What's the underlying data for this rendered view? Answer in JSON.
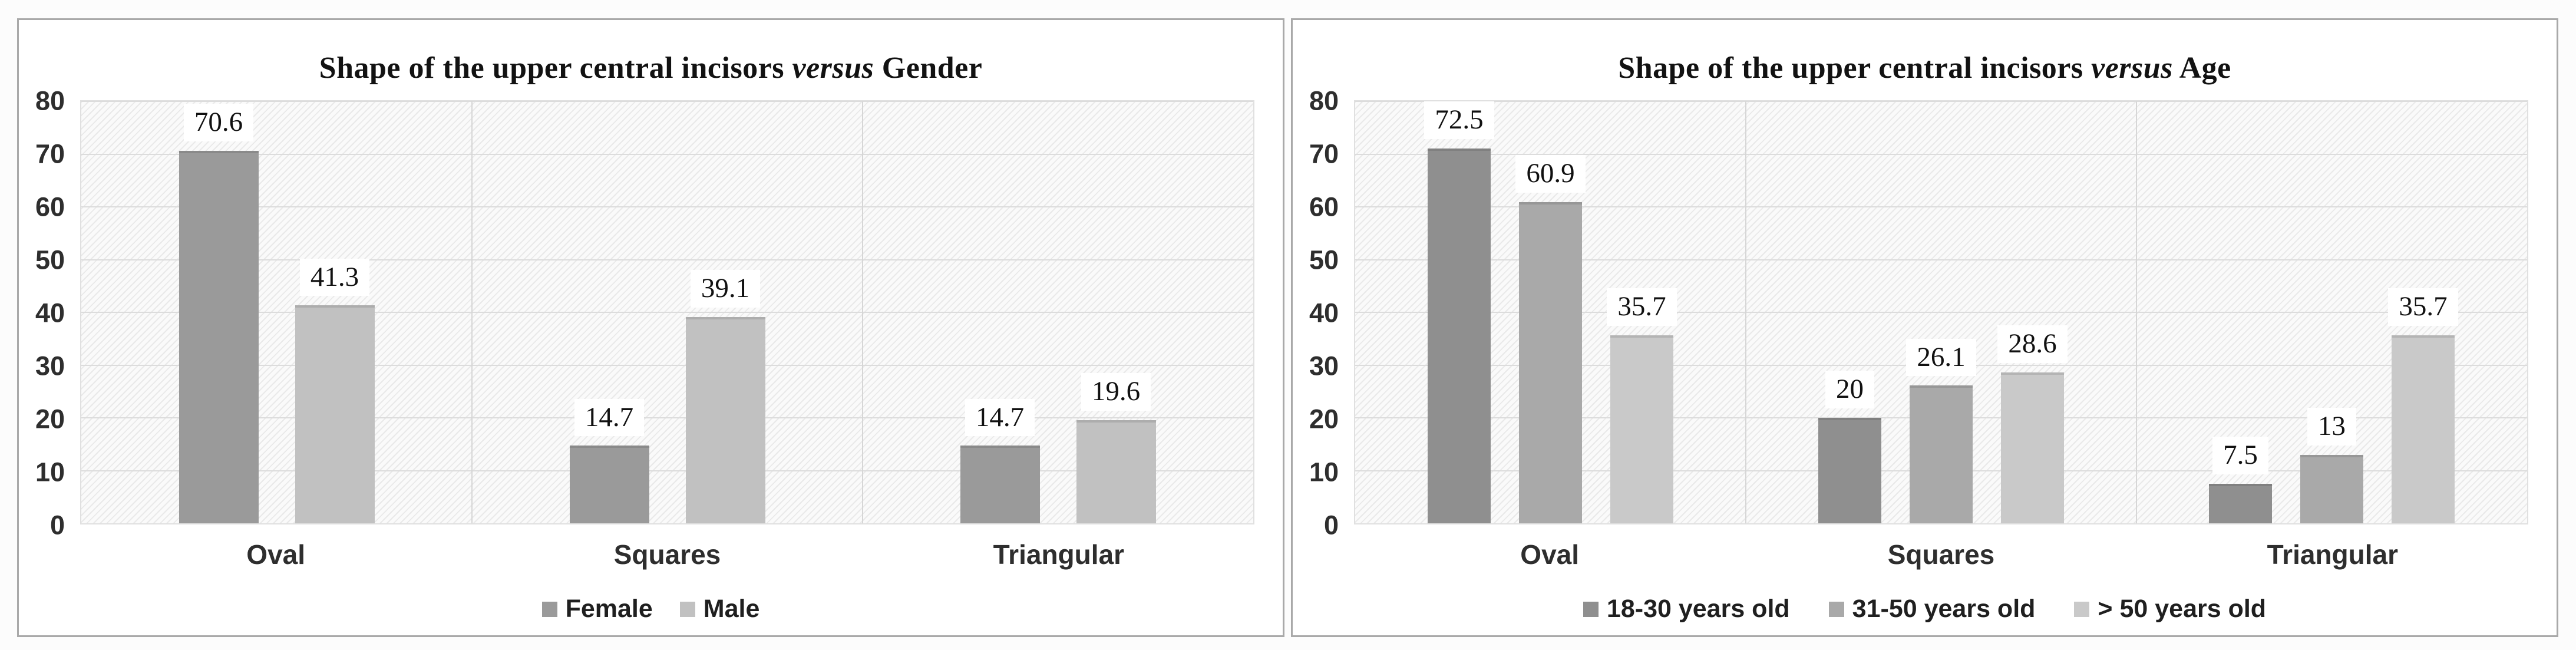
{
  "figure": {
    "background": "#fcfcfc",
    "panel_border_color": "#a9a9a9"
  },
  "chart_data": [
    {
      "type": "bar",
      "title": "Shape of the upper central incisors versus Gender",
      "title_parts": {
        "prefix": "Shape of the upper central incisors",
        "italic": "versus",
        "suffix": "Gender"
      },
      "categories": [
        "Oval",
        "Squares",
        "Triangular"
      ],
      "series": [
        {
          "name": "Female",
          "color": "#9a9a9a",
          "values": [
            70.6,
            14.7,
            14.7
          ]
        },
        {
          "name": "Male",
          "color": "#c1c1c1",
          "values": [
            41.3,
            39.1,
            19.6
          ]
        }
      ],
      "y_ticks": [
        0,
        10,
        20,
        30,
        40,
        50,
        60,
        70,
        80
      ],
      "ylim": [
        0,
        80
      ],
      "xlabel": "",
      "ylabel": "",
      "grid": "horizontal gridlines every 10 + vertical category separators, hatched plot background",
      "legend_position": "bottom-center",
      "data_labels": "above bars on white boxes"
    },
    {
      "type": "bar",
      "title": "Shape of the upper central incisors versus Age",
      "title_parts": {
        "prefix": "Shape of the upper central incisors",
        "italic": "versus",
        "suffix": "Age"
      },
      "categories": [
        "Oval",
        "Squares",
        "Triangular"
      ],
      "series": [
        {
          "name": "18-30 years old",
          "color": "#8f8f8f",
          "values": [
            72.5,
            20,
            7.5
          ]
        },
        {
          "name": "31-50 years old",
          "color": "#a9a9a9",
          "values": [
            60.9,
            26.1,
            13
          ]
        },
        {
          "name": "> 50 years old",
          "color": "#c9c9c9",
          "values": [
            35.7,
            28.6,
            35.7
          ]
        }
      ],
      "y_ticks": [
        0,
        10,
        20,
        30,
        40,
        50,
        60,
        70,
        80
      ],
      "ylim": [
        0,
        80
      ],
      "xlabel": "",
      "ylabel": "",
      "grid": "horizontal gridlines every 10 + vertical category separators, hatched plot background",
      "legend_position": "bottom-center",
      "data_labels": "above bars on white boxes"
    }
  ]
}
